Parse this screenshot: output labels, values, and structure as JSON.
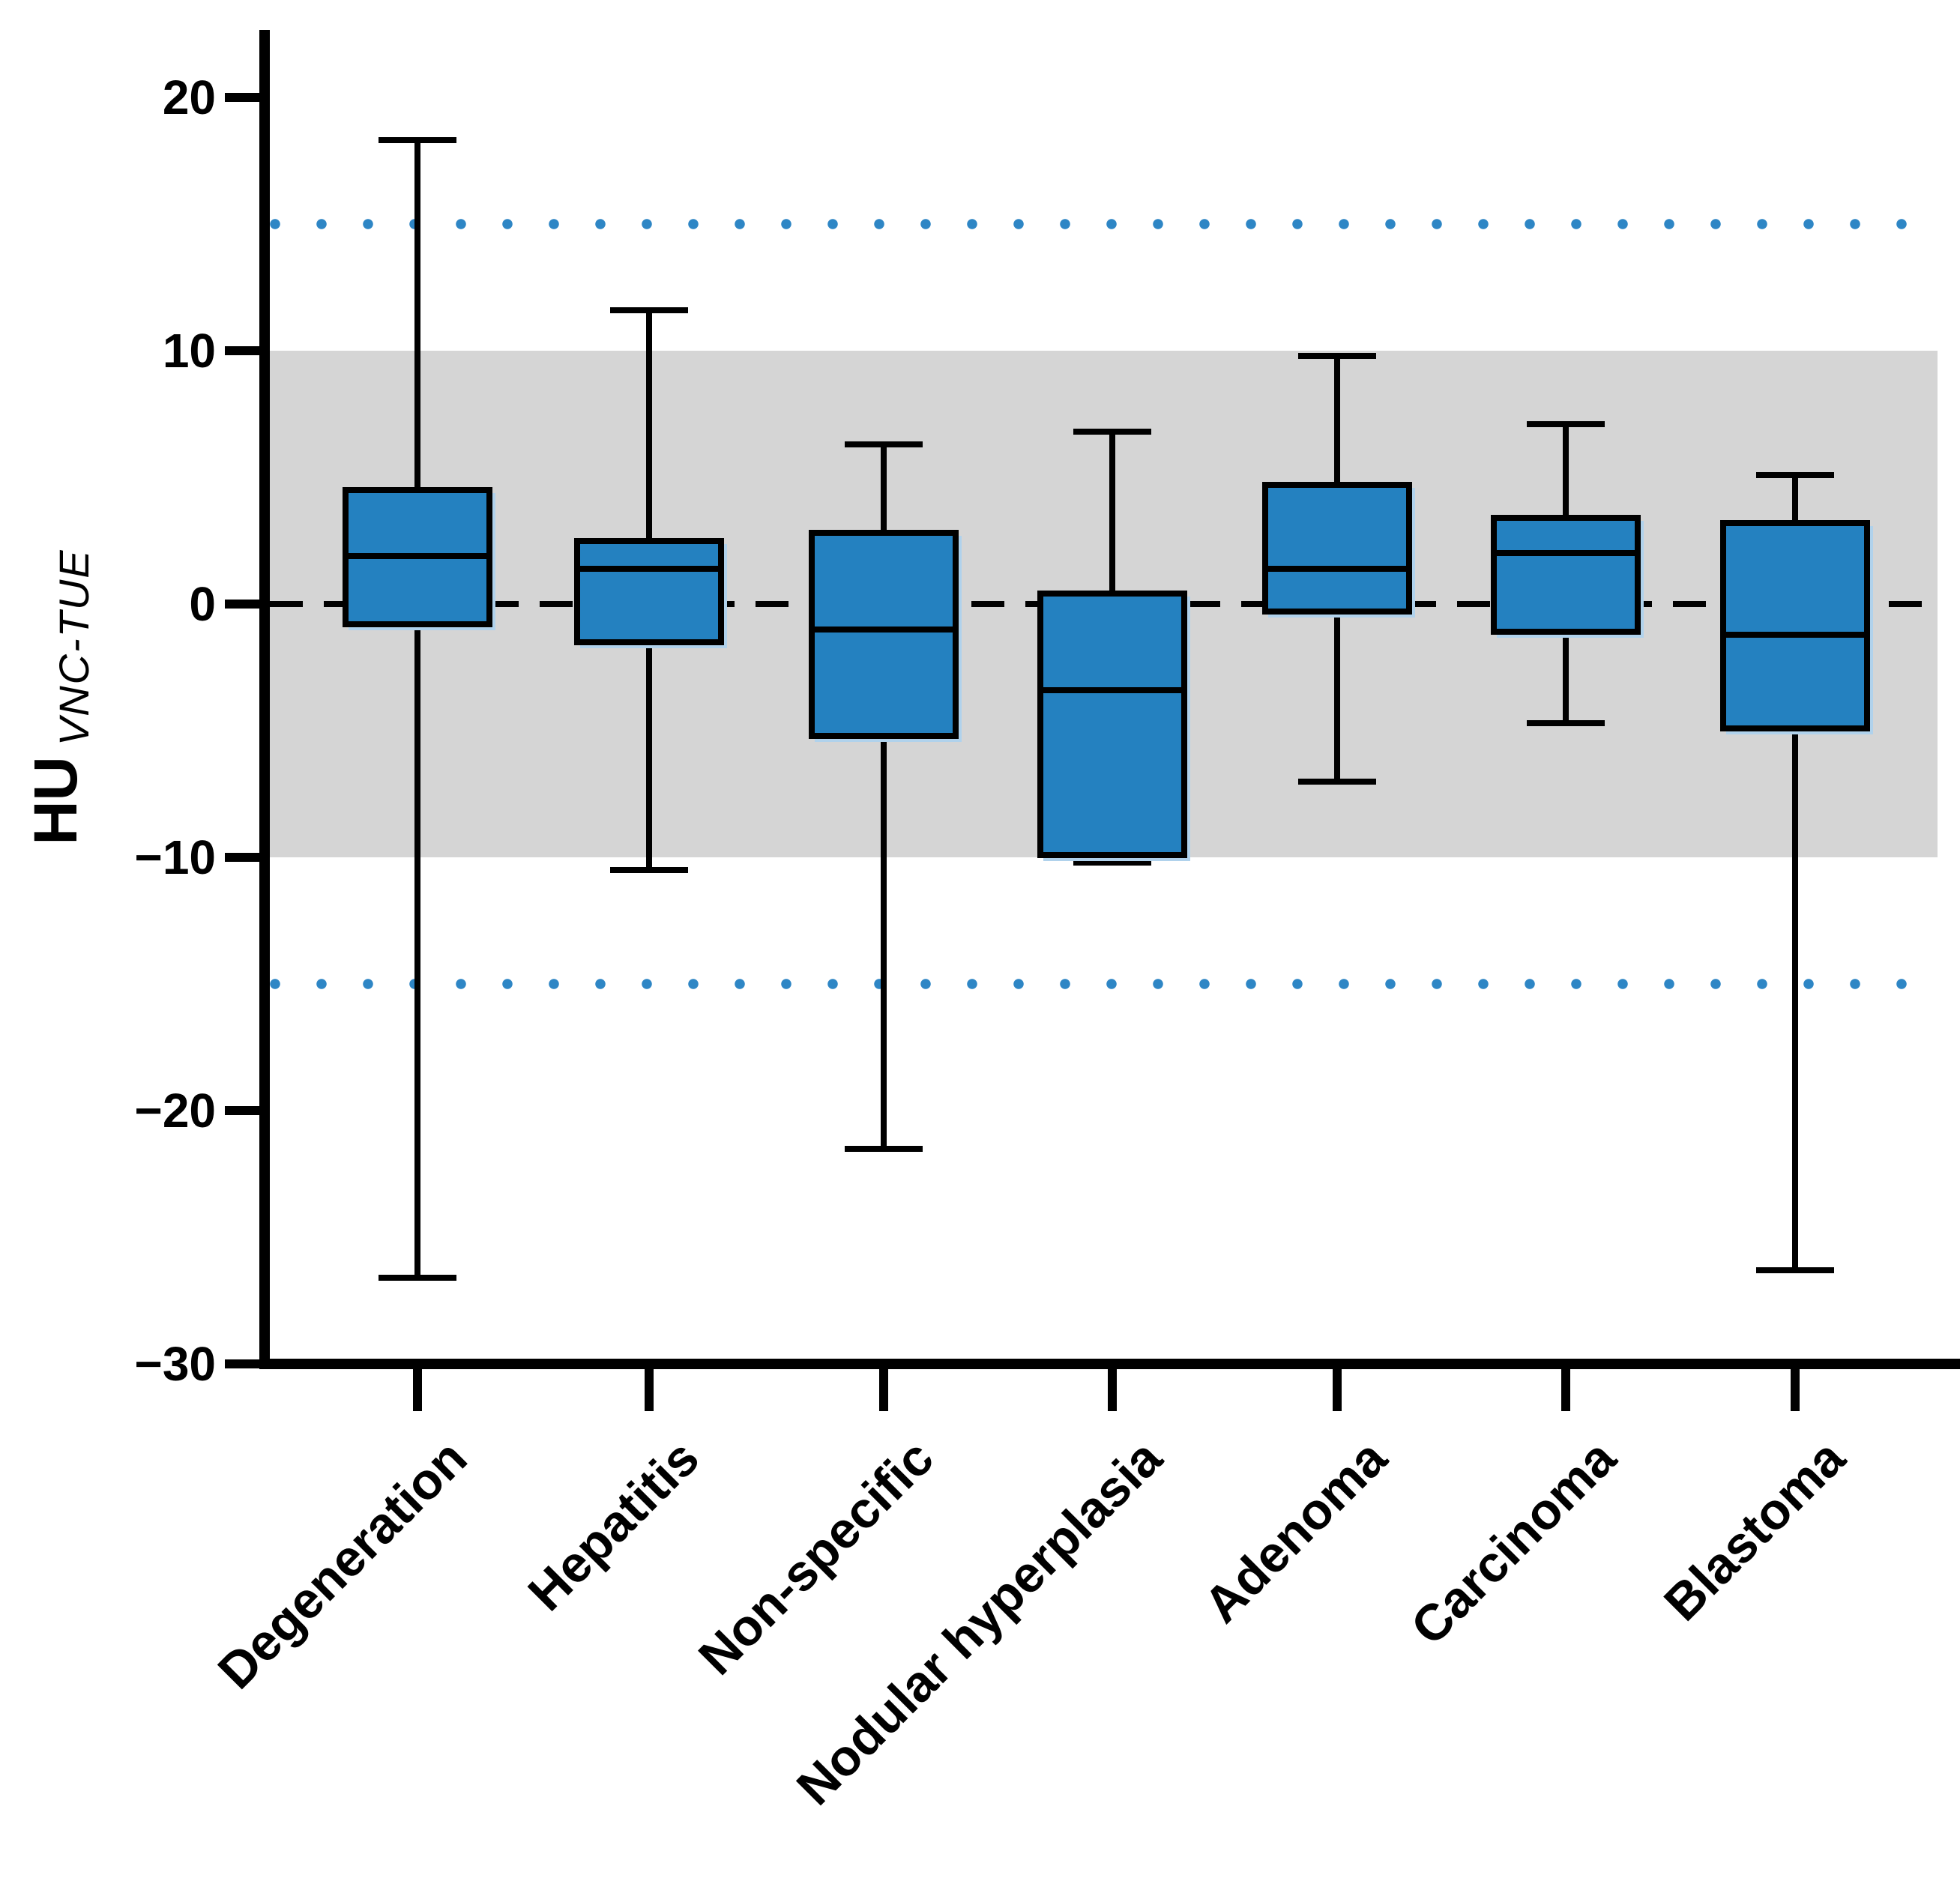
{
  "figure": {
    "ylabel_main": "HU",
    "ylabel_sub": "VNC-TUE"
  },
  "chart_data": {
    "type": "box",
    "title": "",
    "xlabel": "",
    "ylabel": "HU VNC-TUE",
    "ylim": [
      -30,
      22.6
    ],
    "grid": false,
    "legend": "none",
    "yticks": [
      20,
      10,
      0,
      -10,
      -20,
      -30
    ],
    "ytick_labels": [
      "20",
      "10",
      "0",
      "−10",
      "−20",
      "−30"
    ],
    "reference_band": {
      "from": -10,
      "to": 10,
      "color": "#d5d5d5"
    },
    "reference_lines": [
      {
        "value": 0,
        "style": "dashed",
        "color": "#000000"
      },
      {
        "value": 15,
        "style": "dotted",
        "color": "#2e86c5"
      },
      {
        "value": -15,
        "style": "dotted",
        "color": "#2e86c5"
      }
    ],
    "box_fill_color": "#2481c0",
    "box_shadow_color": "#b0d2ec",
    "categories": [
      "Degeneration",
      "Hepatitis",
      "Non-specific",
      "Nodular hyperplasia",
      "Adenoma",
      "Carcinoma",
      "Blastoma"
    ],
    "series": [
      {
        "label": "Degeneration",
        "whisker_low": -26.6,
        "q1": -0.8,
        "median": 1.9,
        "q3": 4.5,
        "whisker_high": 18.3
      },
      {
        "label": "Hepatitis",
        "whisker_low": -10.5,
        "q1": -1.5,
        "median": 1.4,
        "q3": 2.5,
        "whisker_high": 11.6
      },
      {
        "label": "Non-specific",
        "whisker_low": -21.5,
        "q1": -5.2,
        "median": -1.0,
        "q3": 2.8,
        "whisker_high": 6.3
      },
      {
        "label": "Nodular hyperplasia",
        "whisker_low": -10.2,
        "q1": -9.9,
        "median": -3.4,
        "q3": 0.4,
        "whisker_high": 6.8
      },
      {
        "label": "Adenoma",
        "whisker_low": -7.0,
        "q1": -0.3,
        "median": 1.4,
        "q3": 4.7,
        "whisker_high": 9.8
      },
      {
        "label": "Carcinoma",
        "whisker_low": -4.7,
        "q1": -1.1,
        "median": 2.0,
        "q3": 3.4,
        "whisker_high": 7.1
      },
      {
        "label": "Blastoma",
        "whisker_low": -26.3,
        "q1": -4.9,
        "median": -1.2,
        "q3": 3.2,
        "whisker_high": 5.1
      }
    ]
  }
}
